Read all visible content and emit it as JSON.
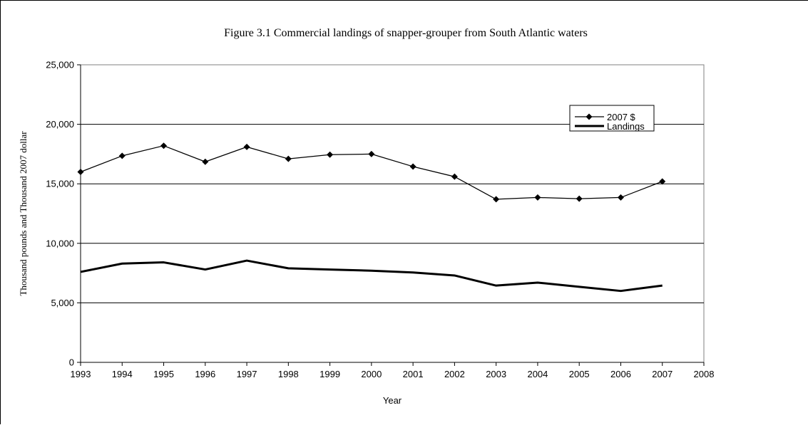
{
  "chart_data": {
    "type": "line",
    "title": "Figure 3.1  Commercial landings of snapper-grouper from South Atlantic waters",
    "xlabel": "Year",
    "ylabel": "Thousand pounds and Thousand 2007 dollar",
    "xlim": [
      1993,
      2008
    ],
    "ylim": [
      0,
      25000
    ],
    "x_ticks": [
      1993,
      1994,
      1995,
      1996,
      1997,
      1998,
      1999,
      2000,
      2001,
      2002,
      2003,
      2004,
      2005,
      2006,
      2007,
      2008
    ],
    "y_ticks": [
      0,
      5000,
      10000,
      15000,
      20000,
      25000
    ],
    "y_tick_labels": [
      "0",
      "5,000",
      "10,000",
      "15,000",
      "20,000",
      "25,000"
    ],
    "grid": "horizontal major gridlines",
    "legend_position": "upper-right inside plot",
    "x": [
      1993,
      1994,
      1995,
      1996,
      1997,
      1998,
      1999,
      2000,
      2001,
      2002,
      2003,
      2004,
      2005,
      2006,
      2007
    ],
    "series": [
      {
        "name": "2007 $",
        "marker": "diamond",
        "line_weight": "thin",
        "color": "#000000",
        "values": [
          16000,
          17350,
          18200,
          16850,
          18100,
          17100,
          17450,
          17500,
          16450,
          15600,
          13700,
          13850,
          13750,
          13850,
          15200
        ]
      },
      {
        "name": "Landings",
        "marker": "none",
        "line_weight": "thick",
        "color": "#000000",
        "values": [
          7600,
          8300,
          8400,
          7800,
          8550,
          7900,
          7800,
          7700,
          7550,
          7300,
          6450,
          6700,
          6350,
          6000,
          6450
        ]
      }
    ]
  }
}
